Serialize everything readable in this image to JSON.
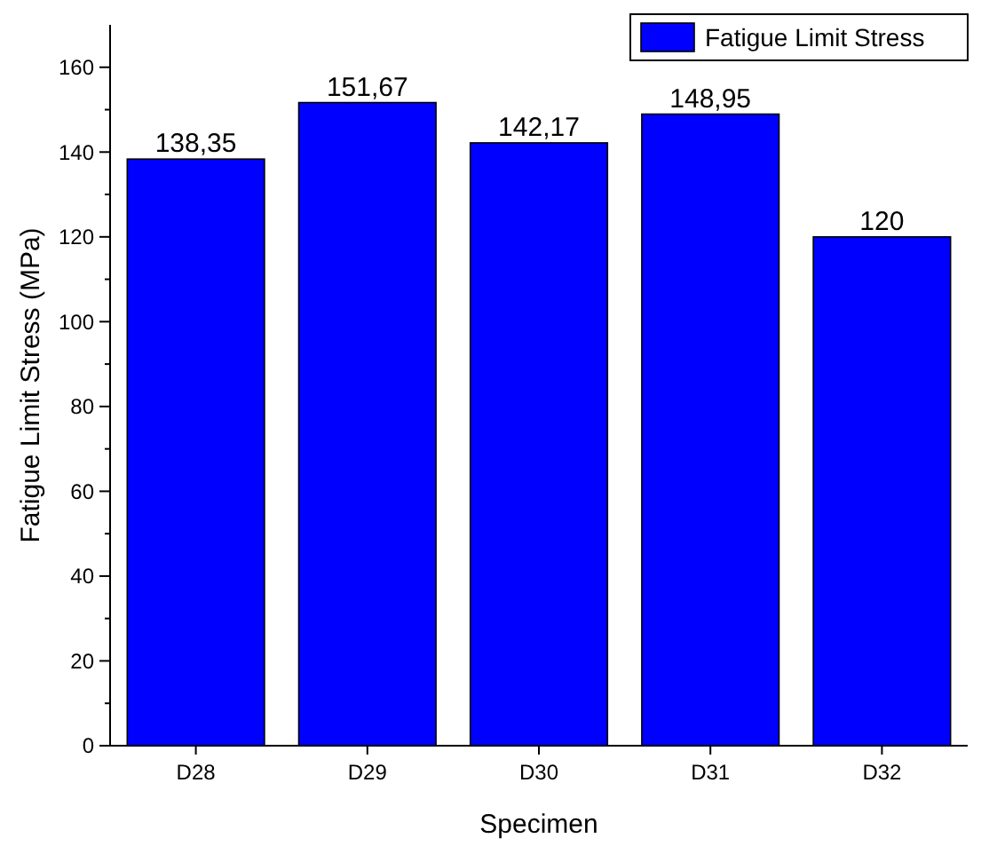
{
  "chart_data": {
    "type": "bar",
    "xlabel": "Specimen",
    "ylabel": "Fatigue Limit Stress (MPa)",
    "categories": [
      "D28",
      "D29",
      "D30",
      "D31",
      "D32"
    ],
    "series": [
      {
        "name": "Fatigue Limit Stress",
        "color": "#0000ff",
        "values": [
          138.35,
          151.67,
          142.17,
          148.95,
          120
        ],
        "value_labels": [
          "138,35",
          "151,67",
          "142,17",
          "148,95",
          "120"
        ]
      }
    ],
    "ylim": [
      0,
      170
    ],
    "yticks": [
      0,
      20,
      40,
      60,
      80,
      100,
      120,
      140,
      160
    ],
    "legend": "top right",
    "grid": false
  }
}
